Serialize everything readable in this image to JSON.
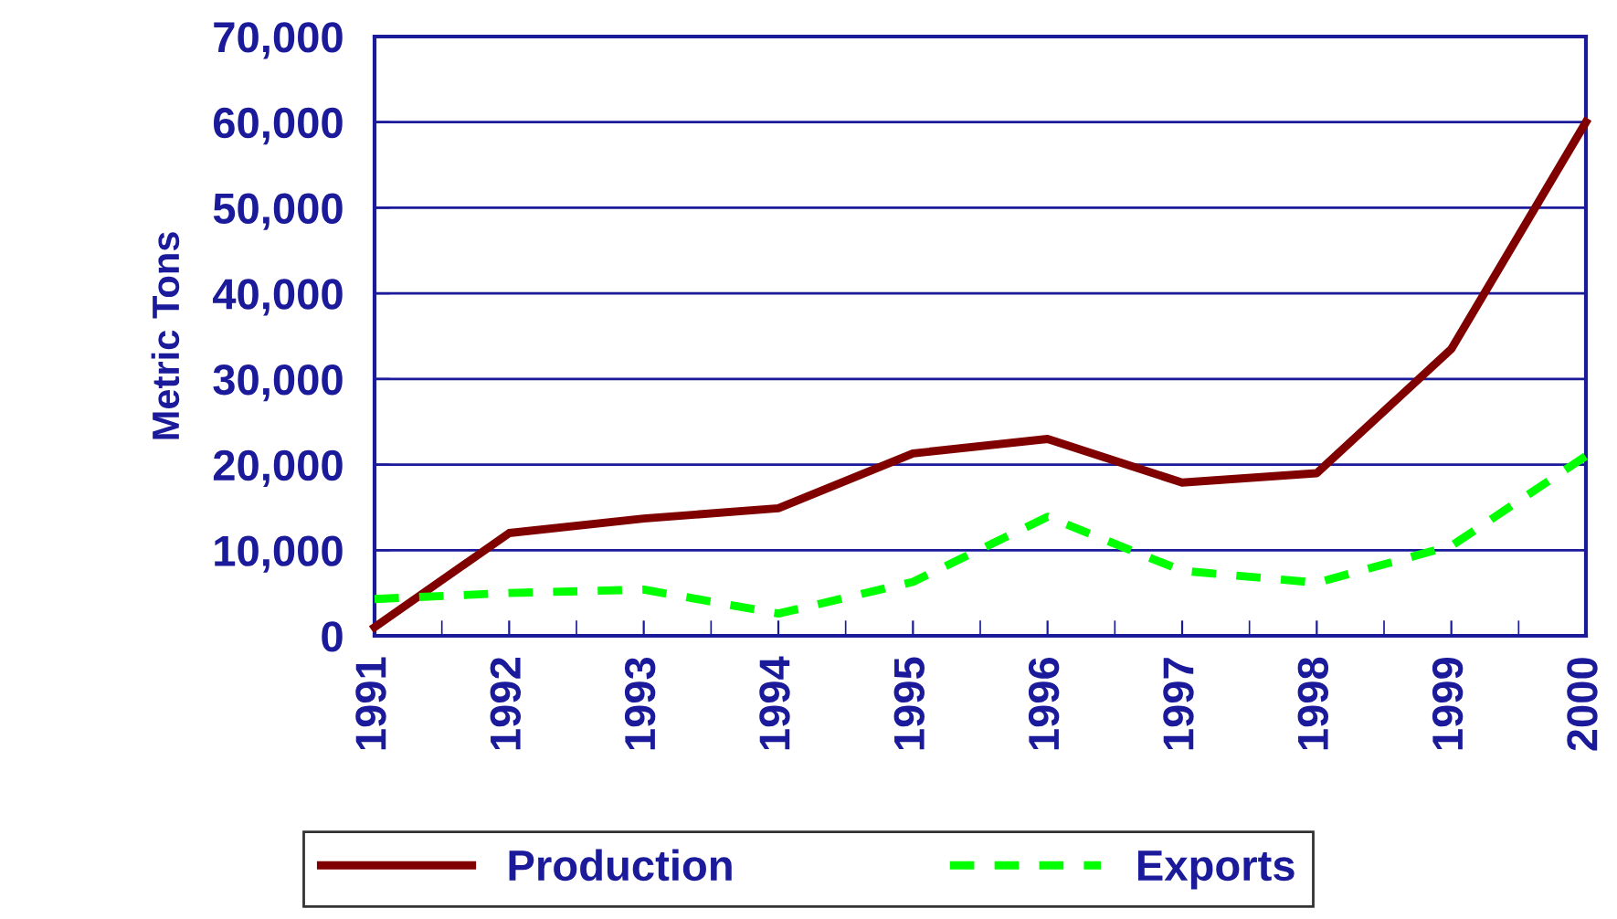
{
  "chart_data": {
    "type": "line",
    "ylabel": "Metric Tons",
    "categories": [
      "1991",
      "1992",
      "1993",
      "1994",
      "1995",
      "1996",
      "1997",
      "1998",
      "1999",
      "2000"
    ],
    "series": [
      {
        "name": "Production",
        "color": "#800000",
        "line_style": "solid",
        "values": [
          1000,
          12000,
          13700,
          14900,
          21300,
          23000,
          17900,
          19000,
          33500,
          60000
        ]
      },
      {
        "name": "Exports",
        "color": "#00ff00",
        "line_style": "dashed",
        "values": [
          4300,
          5000,
          5400,
          2600,
          6300,
          13900,
          7600,
          6200,
          10500,
          21000
        ]
      }
    ],
    "ylim": [
      0,
      70000
    ],
    "yticks": [
      {
        "value": 0,
        "label": "0"
      },
      {
        "value": 10000,
        "label": "10,000"
      },
      {
        "value": 20000,
        "label": "20,000"
      },
      {
        "value": 30000,
        "label": "30,000"
      },
      {
        "value": 40000,
        "label": "40,000"
      },
      {
        "value": 50000,
        "label": "50,000"
      },
      {
        "value": 60000,
        "label": "60,000"
      },
      {
        "value": 70000,
        "label": "70,000"
      }
    ],
    "grid": "y",
    "legend": "bottom",
    "marker": "none"
  }
}
